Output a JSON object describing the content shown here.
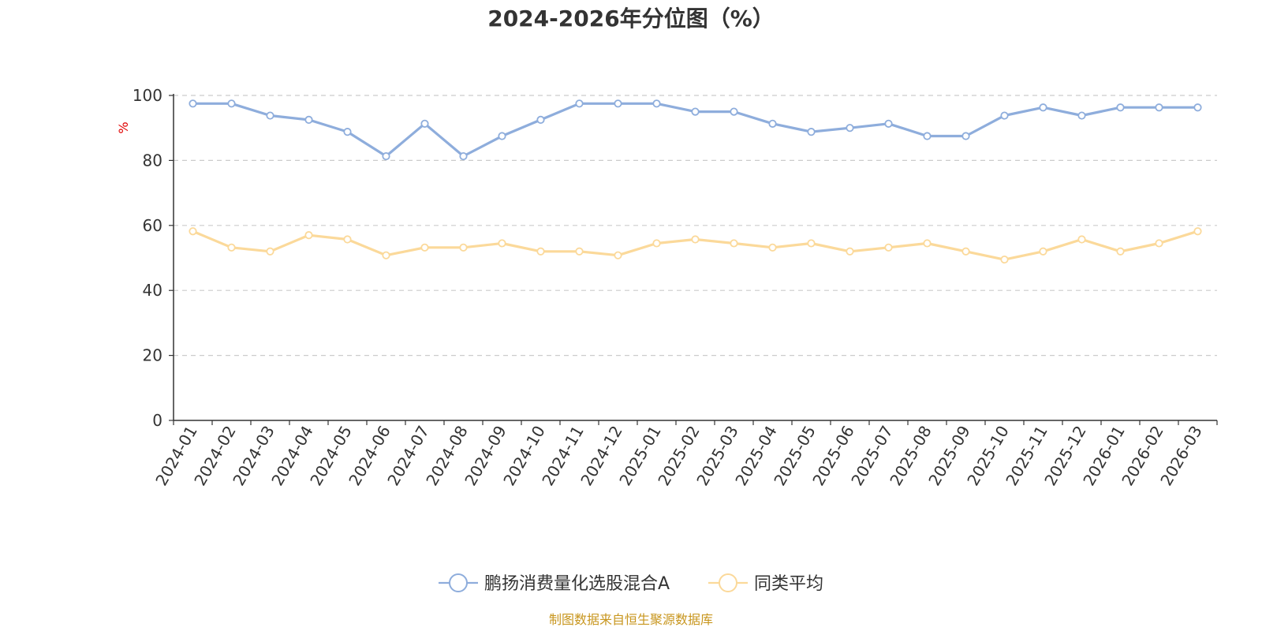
{
  "chart_data": {
    "type": "line",
    "title": "2024-2026年分位图（%）",
    "ylabel": "%",
    "xlabel": "",
    "ylim": [
      0,
      100
    ],
    "yticks": [
      0,
      20,
      40,
      60,
      80,
      100
    ],
    "grid": true,
    "legend_position": "bottom-center",
    "categories": [
      "2024-01",
      "2024-02",
      "2024-03",
      "2024-04",
      "2024-05",
      "2024-06",
      "2024-07",
      "2024-08",
      "2024-09",
      "2024-10",
      "2024-11",
      "2024-12",
      "2025-01",
      "2025-02",
      "2025-03",
      "2025-04",
      "2025-05",
      "2025-06",
      "2025-07",
      "2025-08",
      "2025-09",
      "2025-10",
      "2025-11",
      "2025-12",
      "2026-01",
      "2026-02",
      "2026-03"
    ],
    "series": [
      {
        "name": "鹏扬消费量化选股混合A",
        "color": "#8eaddc",
        "values": [
          97.5,
          97.5,
          93.8,
          92.5,
          88.8,
          81.3,
          91.3,
          81.3,
          87.5,
          92.5,
          97.5,
          97.5,
          97.5,
          95.0,
          95.0,
          91.3,
          88.8,
          90.0,
          91.3,
          87.5,
          87.5,
          93.8,
          96.3,
          93.8,
          96.3,
          96.3,
          96.3
        ]
      },
      {
        "name": "同类平均",
        "color": "#fbd99a",
        "values": [
          58.2,
          53.2,
          52.0,
          57.0,
          55.7,
          50.8,
          53.2,
          53.2,
          54.5,
          52.0,
          52.0,
          50.8,
          54.5,
          55.7,
          54.5,
          53.2,
          54.5,
          52.0,
          53.2,
          54.5,
          52.0,
          49.5,
          52.0,
          55.7,
          52.0,
          54.5,
          58.2
        ]
      }
    ]
  },
  "source_note": "制图数据来自恒生聚源数据库"
}
